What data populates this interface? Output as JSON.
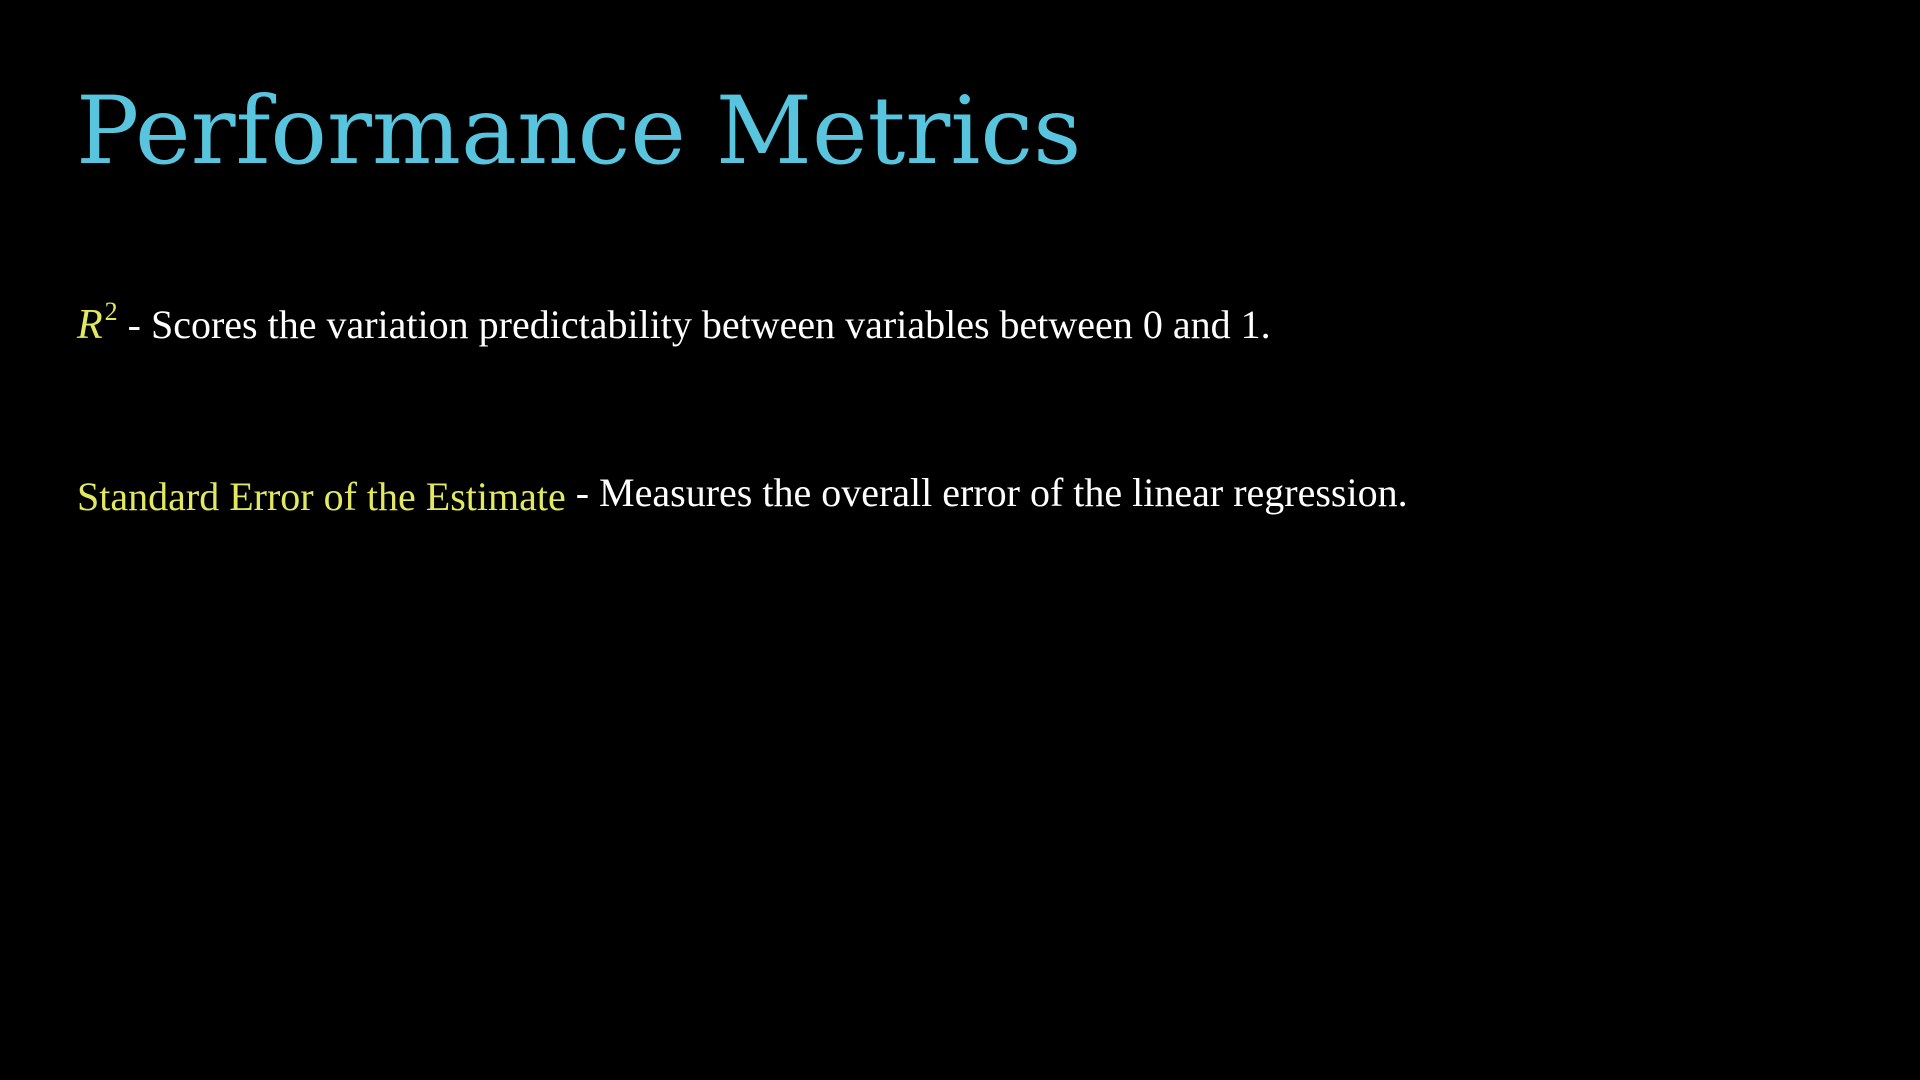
{
  "slide": {
    "title": "Performance Metrics",
    "metrics": [
      {
        "term_base": "R",
        "term_exponent": "2",
        "description": "- Scores the variation predictability between variables between 0 and 1."
      },
      {
        "term": "Standard Error of the Estimate",
        "description": "- Measures the overall error of the linear regression."
      }
    ]
  },
  "colors": {
    "background": "#000000",
    "title": "#58C4DD",
    "term_highlight": "#E2E85F",
    "body_text": "#FFFFFF"
  }
}
